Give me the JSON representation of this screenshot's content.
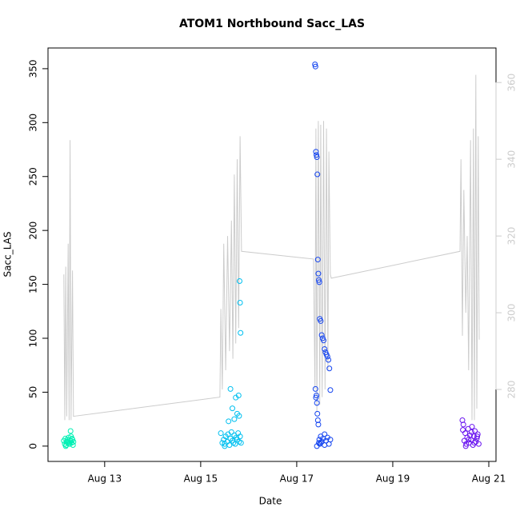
{
  "chart_data": {
    "type": "scatter",
    "title": "ATOM1 Northbound Sacc_LAS",
    "x_label": "Date",
    "y_label": "Sacc_LAS",
    "xlim": [
      11.82,
      21.15
    ],
    "xticks": [
      {
        "value": 13,
        "label": "Aug 13"
      },
      {
        "value": 15,
        "label": "Aug 15"
      },
      {
        "value": 17,
        "label": "Aug 17"
      },
      {
        "value": 19,
        "label": "Aug 19"
      },
      {
        "value": 21,
        "label": "Aug 21"
      }
    ],
    "ylim": [
      -14.2,
      369.2
    ],
    "yticks": [
      0,
      50,
      100,
      150,
      200,
      250,
      300,
      350
    ],
    "y2lim": [
      261.25,
      369
    ],
    "y2ticks": [
      280,
      300,
      320,
      340,
      360
    ],
    "y2_color": "#cccccc",
    "series": [
      {
        "type": "line",
        "axis": "y2",
        "color": "#cccccc",
        "x": [
          12.15,
          12.17,
          12.19,
          12.21,
          12.24,
          12.26,
          12.28,
          12.3,
          12.33,
          12.35,
          15.4,
          15.42,
          15.45,
          15.48,
          15.52,
          15.56,
          15.6,
          15.64,
          15.67,
          15.7,
          15.73,
          15.76,
          15.79,
          15.82,
          15.85,
          17.35,
          17.38,
          17.4,
          17.42,
          17.45,
          17.48,
          17.5,
          17.53,
          17.56,
          17.59,
          17.62,
          17.65,
          17.67,
          17.7,
          17.72,
          20.4,
          20.42,
          20.45,
          20.48,
          20.52,
          20.55,
          20.58,
          20.62,
          20.65,
          20.68,
          20.7,
          20.73,
          20.75,
          20.78,
          20.8
        ],
        "values": [
          310,
          272,
          312,
          273,
          318,
          272,
          345,
          272,
          311,
          273,
          278,
          301,
          280,
          318,
          285,
          320,
          290,
          324,
          288,
          336,
          292,
          340,
          296,
          346,
          316,
          314,
          280,
          348,
          274,
          350,
          276,
          349,
          278,
          350,
          280,
          348,
          285,
          342,
          310,
          309,
          316,
          340,
          294,
          332,
          300,
          320,
          285,
          345,
          272,
          348,
          272,
          362,
          275,
          346,
          293
        ]
      },
      {
        "color": "#00f0b4",
        "x": [
          12.15,
          12.17,
          12.18,
          12.2,
          12.21,
          12.22,
          12.24,
          12.25,
          12.26,
          12.28,
          12.29,
          12.3,
          12.31,
          12.33,
          12.34,
          12.35,
          12.19,
          12.27,
          12.32,
          12.23
        ],
        "values": [
          5,
          2,
          7,
          1,
          4,
          6,
          3,
          8,
          2,
          5,
          14,
          9,
          3,
          6,
          1,
          4,
          0,
          2,
          7,
          3
        ]
      },
      {
        "color": "#00c0f0",
        "x": [
          15.42,
          15.45,
          15.48,
          15.5,
          15.52,
          15.55,
          15.57,
          15.6,
          15.62,
          15.64,
          15.66,
          15.68,
          15.7,
          15.72,
          15.74,
          15.76,
          15.78,
          15.8,
          15.82,
          15.84,
          15.62,
          15.66,
          15.7,
          15.73,
          15.76,
          15.79,
          15.8,
          15.81,
          15.82,
          15.83,
          15.5,
          15.58
        ],
        "values": [
          12,
          3,
          6,
          2,
          9,
          4,
          11,
          1,
          7,
          13,
          5,
          3,
          10,
          2,
          8,
          6,
          12,
          4,
          9,
          3,
          53,
          35,
          25,
          45,
          30,
          47,
          28,
          153,
          133,
          105,
          0,
          23
        ]
      },
      {
        "color": "#1444f0",
        "x": [
          17.38,
          17.39,
          17.4,
          17.41,
          17.42,
          17.43,
          17.44,
          17.45,
          17.46,
          17.47,
          17.48,
          17.5,
          17.52,
          17.54,
          17.56,
          17.58,
          17.6,
          17.62,
          17.64,
          17.66,
          17.68,
          17.7,
          17.39,
          17.4,
          17.41,
          17.42,
          17.43,
          17.44,
          17.45,
          17.46,
          17.47,
          17.48,
          17.5,
          17.52,
          17.55,
          17.58,
          17.61,
          17.64,
          17.67,
          17.7,
          17.42,
          17.5,
          17.58
        ],
        "values": [
          354,
          352,
          273,
          270,
          268,
          252,
          173,
          160,
          154,
          152,
          118,
          116,
          103,
          100,
          98,
          90,
          87,
          85,
          83,
          80,
          72,
          52,
          53,
          45,
          47,
          40,
          30,
          24,
          20,
          3,
          6,
          2,
          9,
          4,
          7,
          1,
          5,
          8,
          2,
          6,
          0,
          3,
          11
        ]
      },
      {
        "color": "#6a14f0",
        "x": [
          20.45,
          20.47,
          20.49,
          20.51,
          20.53,
          20.55,
          20.57,
          20.59,
          20.61,
          20.63,
          20.65,
          20.67,
          20.69,
          20.71,
          20.73,
          20.75,
          20.77,
          20.79,
          20.46,
          20.52,
          20.58,
          20.64,
          20.7,
          20.76
        ],
        "values": [
          24,
          20,
          5,
          12,
          2,
          8,
          16,
          3,
          10,
          6,
          18,
          1,
          9,
          14,
          4,
          7,
          11,
          2,
          15,
          0,
          6,
          13,
          3,
          9
        ]
      }
    ]
  }
}
